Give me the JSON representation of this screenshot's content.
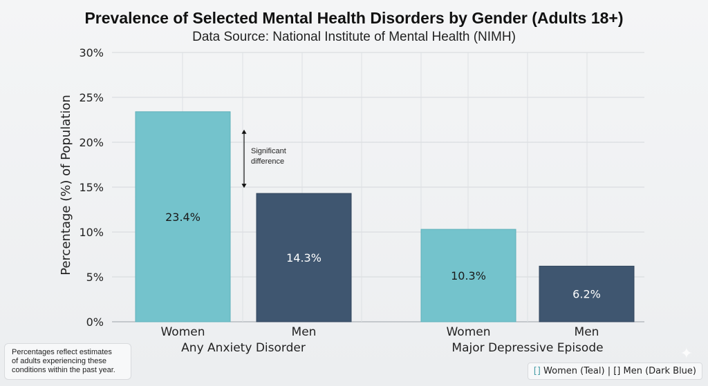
{
  "chart_data": {
    "type": "bar",
    "title": "Prevalence of Selected Mental Health Disorders by Gender (Adults 18+)",
    "subtitle": "Data Source: National Institute of Mental Health (NIMH)",
    "ylabel": "Percentage (%) of Population",
    "xlabel": "",
    "ylim": [
      0,
      30
    ],
    "yticks": [
      0,
      5,
      10,
      15,
      20,
      25,
      30
    ],
    "ytick_labels": [
      "0%",
      "5%",
      "10%",
      "15%",
      "20%",
      "25%",
      "30%"
    ],
    "groups": [
      {
        "label": "Any Anxiety Disorder",
        "bars": [
          {
            "category": "Women",
            "value": 23.4,
            "label": "23.4%"
          },
          {
            "category": "Men",
            "value": 14.3,
            "label": "14.3%"
          }
        ]
      },
      {
        "label": "Major Depressive Episode",
        "bars": [
          {
            "category": "Women",
            "value": 10.3,
            "label": "10.3%"
          },
          {
            "category": "Men",
            "value": 6.2,
            "label": "6.2%"
          }
        ]
      }
    ],
    "series_colors": {
      "Women": "#74c3cc",
      "Men": "#3f5670"
    },
    "label_colors": {
      "Women": "#1a1a1a",
      "Men": "#ffffff"
    },
    "annotation": {
      "text_lines": [
        "Significant",
        "difference"
      ],
      "between": [
        23.4,
        14.3
      ]
    },
    "grid": true
  },
  "footnote": {
    "line1": "Percentages reflect estimates",
    "line2": "of adults experiencing these",
    "line3": "conditions within the past year."
  },
  "legend": {
    "women_marker": "[]",
    "women_text": " Women (Teal) | ",
    "men_marker": "[]",
    "men_text": " Men (Dark Blue)"
  },
  "decor": {
    "sparkle_icon": "✦"
  }
}
